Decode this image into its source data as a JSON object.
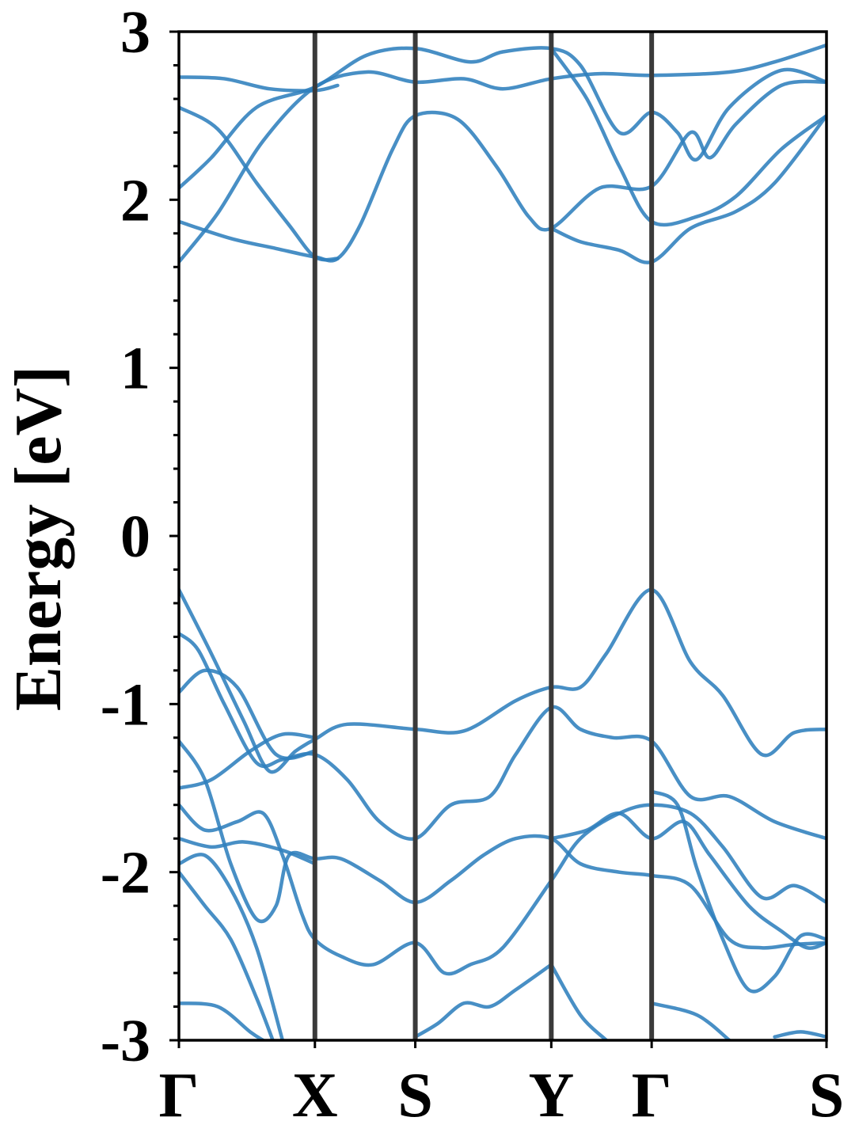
{
  "chart_data": {
    "type": "line",
    "title": "",
    "xlabel": "",
    "ylabel": "Energy [eV]",
    "ylim": [
      -3,
      3
    ],
    "yticks": [
      3,
      2,
      1,
      0,
      -1,
      -2,
      -3
    ],
    "ytick_labels": [
      "3",
      "2",
      "1",
      "0",
      "-1",
      "-2",
      "-3"
    ],
    "minor_ytick_step": 0.2,
    "grid": false,
    "high_symmetry_points": [
      {
        "label": "Γ",
        "k": 0.0
      },
      {
        "label": "X",
        "k": 0.21
      },
      {
        "label": "S",
        "k": 0.365
      },
      {
        "label": "Y",
        "k": 0.575
      },
      {
        "label": "Γ",
        "k": 0.73
      },
      {
        "label": "S",
        "k": 1.0
      }
    ],
    "line_color": "#2f7fbd",
    "vline_color": "#3a3a3a",
    "series": [
      {
        "values": [
          [
            0,
            1.63
          ],
          [
            0.06,
            1.92
          ],
          [
            0.13,
            2.35
          ],
          [
            0.21,
            2.67
          ],
          [
            0.29,
            2.76
          ],
          [
            0.365,
            2.7
          ],
          [
            0.44,
            2.72
          ],
          [
            0.5,
            2.66
          ],
          [
            0.575,
            2.72
          ],
          [
            0.65,
            2.75
          ],
          [
            0.73,
            2.74
          ],
          [
            0.85,
            2.76
          ],
          [
            0.92,
            2.82
          ],
          [
            1.0,
            2.92
          ]
        ]
      },
      {
        "values": [
          [
            0,
            1.87
          ],
          [
            0.08,
            1.77
          ],
          [
            0.15,
            1.71
          ],
          [
            0.21,
            1.66
          ],
          [
            0.245,
            1.65
          ],
          [
            0.28,
            1.85
          ],
          [
            0.33,
            2.3
          ],
          [
            0.365,
            2.5
          ],
          [
            0.43,
            2.48
          ],
          [
            0.49,
            2.2
          ],
          [
            0.54,
            1.9
          ],
          [
            0.575,
            1.83
          ],
          [
            0.65,
            2.07
          ],
          [
            0.73,
            2.08
          ],
          [
            0.79,
            2.4
          ],
          [
            0.82,
            2.25
          ],
          [
            0.86,
            2.45
          ],
          [
            0.93,
            2.68
          ],
          [
            1.0,
            2.7
          ]
        ]
      },
      {
        "values": [
          [
            0,
            2.07
          ],
          [
            0.05,
            2.25
          ],
          [
            0.12,
            2.55
          ],
          [
            0.21,
            2.67
          ],
          [
            0.29,
            2.86
          ],
          [
            0.365,
            2.9
          ],
          [
            0.45,
            2.82
          ],
          [
            0.5,
            2.88
          ],
          [
            0.575,
            2.9
          ],
          [
            0.62,
            2.8
          ],
          [
            0.68,
            2.4
          ],
          [
            0.73,
            2.52
          ],
          [
            0.77,
            2.4
          ],
          [
            0.8,
            2.24
          ],
          [
            0.85,
            2.55
          ],
          [
            0.93,
            2.77
          ],
          [
            1.0,
            2.7
          ]
        ]
      },
      {
        "values": [
          [
            0,
            2.55
          ],
          [
            0.06,
            2.42
          ],
          [
            0.12,
            2.1
          ],
          [
            0.17,
            1.85
          ],
          [
            0.21,
            1.66
          ],
          [
            0.245,
            1.65
          ]
        ]
      },
      {
        "values": [
          [
            0,
            2.73
          ],
          [
            0.07,
            2.72
          ],
          [
            0.14,
            2.66
          ],
          [
            0.21,
            2.65
          ],
          [
            0.245,
            2.68
          ]
        ]
      },
      {
        "values": [
          [
            0.575,
            1.83
          ],
          [
            0.62,
            1.75
          ],
          [
            0.68,
            1.7
          ],
          [
            0.73,
            1.63
          ],
          [
            0.79,
            1.83
          ],
          [
            0.86,
            1.93
          ],
          [
            0.92,
            2.1
          ],
          [
            1.0,
            2.5
          ]
        ]
      },
      {
        "values": [
          [
            0.575,
            2.9
          ],
          [
            0.63,
            2.6
          ],
          [
            0.68,
            2.2
          ],
          [
            0.73,
            1.87
          ],
          [
            0.8,
            1.9
          ],
          [
            0.86,
            2.02
          ],
          [
            0.93,
            2.3
          ],
          [
            1.0,
            2.5
          ]
        ]
      },
      {
        "values": [
          [
            0,
            -0.32
          ],
          [
            0.05,
            -0.7
          ],
          [
            0.1,
            -1.1
          ],
          [
            0.14,
            -1.4
          ],
          [
            0.18,
            -1.28
          ],
          [
            0.21,
            -1.21
          ],
          [
            0.26,
            -1.12
          ],
          [
            0.365,
            -1.15
          ],
          [
            0.44,
            -1.16
          ],
          [
            0.52,
            -0.98
          ],
          [
            0.575,
            -0.9
          ],
          [
            0.62,
            -0.9
          ],
          [
            0.66,
            -0.7
          ],
          [
            0.73,
            -0.32
          ],
          [
            0.79,
            -0.75
          ],
          [
            0.84,
            -0.95
          ],
          [
            0.9,
            -1.3
          ],
          [
            0.95,
            -1.17
          ],
          [
            1.0,
            -1.15
          ]
        ]
      },
      {
        "values": [
          [
            0,
            -0.58
          ],
          [
            0.03,
            -0.68
          ],
          [
            0.07,
            -1.0
          ],
          [
            0.12,
            -1.35
          ],
          [
            0.16,
            -1.33
          ],
          [
            0.21,
            -1.3
          ],
          [
            0.26,
            -1.45
          ],
          [
            0.31,
            -1.7
          ],
          [
            0.365,
            -1.8
          ],
          [
            0.42,
            -1.6
          ],
          [
            0.48,
            -1.55
          ],
          [
            0.52,
            -1.3
          ],
          [
            0.575,
            -1.02
          ],
          [
            0.62,
            -1.15
          ],
          [
            0.67,
            -1.2
          ],
          [
            0.73,
            -1.22
          ],
          [
            0.79,
            -1.55
          ],
          [
            0.85,
            -1.55
          ],
          [
            0.92,
            -1.7
          ],
          [
            1.0,
            -1.8
          ]
        ]
      },
      {
        "values": [
          [
            0,
            -0.93
          ],
          [
            0.04,
            -0.8
          ],
          [
            0.09,
            -0.9
          ],
          [
            0.15,
            -1.3
          ],
          [
            0.21,
            -1.28
          ]
        ]
      },
      {
        "values": [
          [
            0,
            -1.22
          ],
          [
            0.04,
            -1.45
          ],
          [
            0.08,
            -1.95
          ],
          [
            0.12,
            -2.28
          ],
          [
            0.15,
            -2.2
          ],
          [
            0.17,
            -1.9
          ],
          [
            0.21,
            -1.92
          ],
          [
            0.25,
            -1.92
          ],
          [
            0.31,
            -2.05
          ],
          [
            0.365,
            -2.18
          ],
          [
            0.42,
            -2.05
          ],
          [
            0.47,
            -1.9
          ],
          [
            0.52,
            -1.8
          ],
          [
            0.575,
            -1.8
          ],
          [
            0.62,
            -1.95
          ],
          [
            0.68,
            -2.0
          ],
          [
            0.73,
            -2.02
          ],
          [
            0.79,
            -2.08
          ],
          [
            0.85,
            -2.4
          ],
          [
            0.9,
            -2.45
          ],
          [
            0.95,
            -2.43
          ],
          [
            1.0,
            -2.42
          ]
        ]
      },
      {
        "values": [
          [
            0,
            -1.5
          ],
          [
            0.05,
            -1.45
          ],
          [
            0.11,
            -1.28
          ],
          [
            0.16,
            -1.18
          ],
          [
            0.21,
            -1.2
          ]
        ]
      },
      {
        "values": [
          [
            0,
            -1.6
          ],
          [
            0.04,
            -1.75
          ],
          [
            0.09,
            -1.7
          ],
          [
            0.13,
            -1.65
          ],
          [
            0.16,
            -1.9
          ],
          [
            0.19,
            -2.25
          ],
          [
            0.21,
            -2.4
          ],
          [
            0.25,
            -2.5
          ],
          [
            0.3,
            -2.55
          ],
          [
            0.365,
            -2.42
          ],
          [
            0.41,
            -2.6
          ],
          [
            0.45,
            -2.55
          ],
          [
            0.5,
            -2.45
          ],
          [
            0.575,
            -2.05
          ],
          [
            0.62,
            -1.8
          ],
          [
            0.68,
            -1.65
          ],
          [
            0.73,
            -1.6
          ],
          [
            0.79,
            -1.65
          ],
          [
            0.84,
            -1.85
          ],
          [
            0.9,
            -2.15
          ],
          [
            0.95,
            -2.08
          ],
          [
            1.0,
            -2.18
          ]
        ]
      },
      {
        "values": [
          [
            0,
            -1.8
          ],
          [
            0.05,
            -1.85
          ],
          [
            0.1,
            -1.82
          ],
          [
            0.16,
            -1.87
          ],
          [
            0.21,
            -1.95
          ]
        ]
      },
      {
        "values": [
          [
            0,
            -1.95
          ],
          [
            0.04,
            -1.9
          ],
          [
            0.08,
            -2.1
          ],
          [
            0.12,
            -2.45
          ],
          [
            0.16,
            -3.0
          ]
        ]
      },
      {
        "values": [
          [
            0,
            -2.0
          ],
          [
            0.04,
            -2.2
          ],
          [
            0.08,
            -2.4
          ],
          [
            0.12,
            -2.75
          ],
          [
            0.145,
            -3.0
          ]
        ]
      },
      {
        "values": [
          [
            0.575,
            -2.55
          ],
          [
            0.62,
            -2.85
          ],
          [
            0.66,
            -3.0
          ]
        ]
      },
      {
        "values": [
          [
            0,
            -2.78
          ],
          [
            0.06,
            -2.8
          ],
          [
            0.11,
            -2.95
          ],
          [
            0.13,
            -3.0
          ]
        ]
      },
      {
        "values": [
          [
            0.365,
            -2.98
          ],
          [
            0.4,
            -2.9
          ],
          [
            0.44,
            -2.78
          ],
          [
            0.48,
            -2.8
          ],
          [
            0.52,
            -2.7
          ],
          [
            0.575,
            -2.55
          ]
        ]
      },
      {
        "values": [
          [
            0.73,
            -2.78
          ],
          [
            0.8,
            -2.85
          ],
          [
            0.85,
            -3.0
          ]
        ]
      },
      {
        "values": [
          [
            0.73,
            -1.52
          ],
          [
            0.77,
            -1.6
          ],
          [
            0.8,
            -1.98
          ],
          [
            0.84,
            -2.4
          ],
          [
            0.88,
            -2.7
          ],
          [
            0.92,
            -2.62
          ],
          [
            0.96,
            -2.38
          ],
          [
            1.0,
            -2.4
          ]
        ]
      },
      {
        "values": [
          [
            0.575,
            -1.8
          ],
          [
            0.63,
            -1.75
          ],
          [
            0.68,
            -1.65
          ],
          [
            0.73,
            -1.8
          ],
          [
            0.78,
            -1.7
          ],
          [
            0.82,
            -1.9
          ],
          [
            0.88,
            -2.2
          ],
          [
            0.93,
            -2.35
          ],
          [
            0.97,
            -2.45
          ],
          [
            1.0,
            -2.42
          ]
        ]
      },
      {
        "values": [
          [
            0.92,
            -2.98
          ],
          [
            0.96,
            -2.95
          ],
          [
            1.0,
            -2.98
          ]
        ]
      }
    ]
  }
}
